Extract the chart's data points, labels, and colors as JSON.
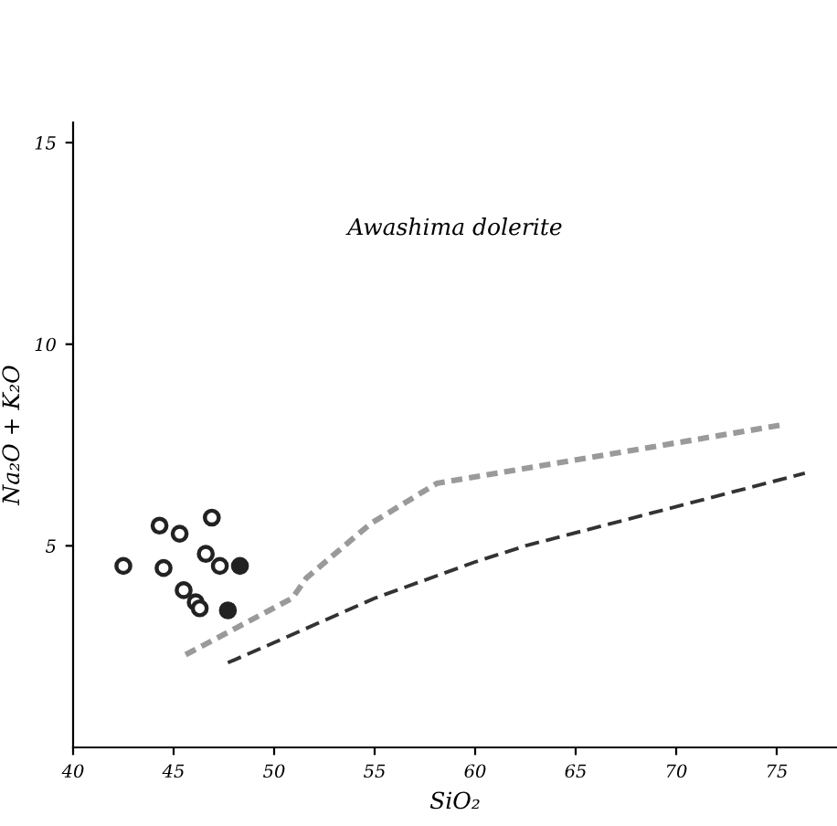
{
  "chart_data": {
    "type": "scatter",
    "title": "Awashima dolerite",
    "xlabel": "SiO₂",
    "ylabel": "Na₂O + K₂O",
    "xlim": [
      40,
      78
    ],
    "ylim": [
      0,
      15.5
    ],
    "xticks": [
      40,
      45,
      50,
      55,
      60,
      65,
      70,
      75
    ],
    "yticks": [
      5,
      10,
      15
    ],
    "grid": false,
    "legend": false,
    "series": [
      {
        "color": "#ffffff",
        "marker": "circle",
        "x": [
          42.5,
          44.3,
          45.3,
          46.9,
          44.5,
          46.6,
          47.3,
          45.5,
          46.1,
          46.3
        ],
        "values": [
          4.5,
          5.5,
          5.3,
          5.7,
          4.45,
          4.8,
          4.5,
          3.9,
          3.6,
          3.45
        ]
      },
      {
        "color": "#222222",
        "marker": "circle",
        "x": [
          48.3,
          47.7
        ],
        "values": [
          4.5,
          3.4
        ]
      },
      {
        "type": "line",
        "color": "#9a9a9a",
        "line_style": "dotted",
        "marker": "none",
        "x": [
          45.6,
          50.9,
          51.6,
          54.8,
          58.1,
          75.3
        ],
        "values": [
          2.3,
          3.7,
          4.2,
          5.55,
          6.55,
          8.0
        ]
      },
      {
        "type": "line",
        "color": "#333333",
        "line_style": "dashed",
        "marker": "none",
        "x": [
          47.7,
          50,
          55,
          60,
          62.5,
          76.4
        ],
        "values": [
          2.1,
          2.6,
          3.7,
          4.6,
          5.0,
          6.8
        ]
      }
    ]
  }
}
